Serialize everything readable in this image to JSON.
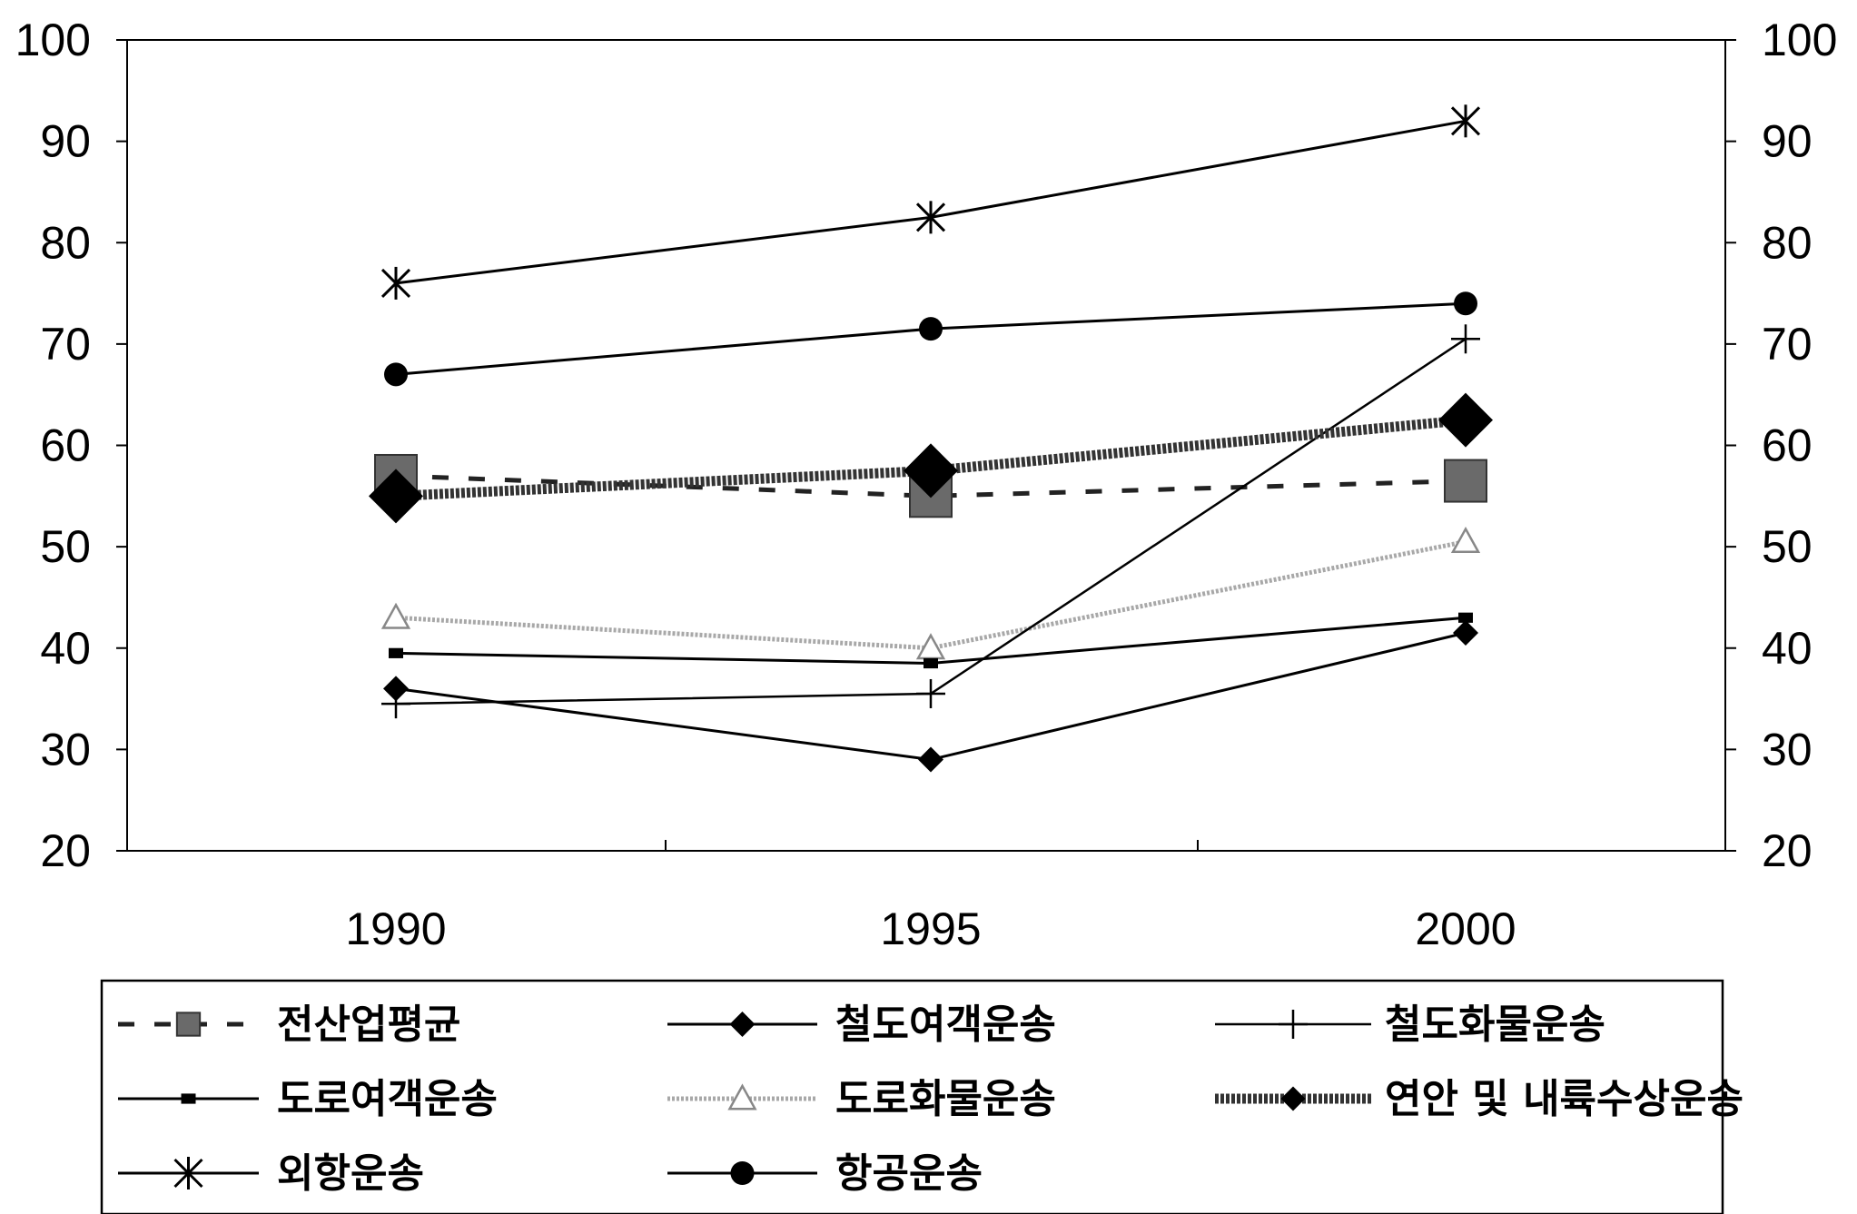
{
  "chart_data": {
    "type": "line",
    "title": "",
    "xlabel": "",
    "ylabel": "",
    "x": [
      "1990",
      "1995",
      "2000"
    ],
    "ylim": [
      20,
      100
    ],
    "yticks": [
      "20",
      "30",
      "40",
      "50",
      "60",
      "70",
      "80",
      "90",
      "100"
    ],
    "secondary_yticks": [
      "20",
      "30",
      "40",
      "50",
      "60",
      "70",
      "80",
      "90",
      "100"
    ],
    "grid": false,
    "legend_position": "bottom",
    "series": [
      {
        "name": "전산업평균",
        "values": [
          57.0,
          55.0,
          56.5
        ],
        "color": "#555555",
        "marker": "square",
        "line": "dashed"
      },
      {
        "name": "철도여객운송",
        "values": [
          36.0,
          29.0,
          41.5
        ],
        "color": "#000000",
        "marker": "diamond",
        "line": "solid"
      },
      {
        "name": "철도화물운송",
        "values": [
          34.5,
          35.5,
          70.5
        ],
        "color": "#000000",
        "marker": "plus",
        "line": "thin"
      },
      {
        "name": "도로여객운송",
        "values": [
          39.5,
          38.5,
          43.0
        ],
        "color": "#000000",
        "marker": "small-square",
        "line": "solid"
      },
      {
        "name": "도로화물운송",
        "values": [
          43.0,
          40.0,
          50.5
        ],
        "color": "#9a9a9a",
        "marker": "triangle",
        "line": "light"
      },
      {
        "name": "연안 및 내륙수상운송",
        "values": [
          55.0,
          57.5,
          62.5
        ],
        "color": "#222222",
        "marker": "big-diamond",
        "line": "thick"
      },
      {
        "name": "외항운송",
        "values": [
          76.0,
          82.5,
          92.0
        ],
        "color": "#000000",
        "marker": "star",
        "line": "solid"
      },
      {
        "name": "항공운송",
        "values": [
          67.0,
          71.5,
          74.0
        ],
        "color": "#000000",
        "marker": "circle",
        "line": "solid"
      }
    ]
  }
}
